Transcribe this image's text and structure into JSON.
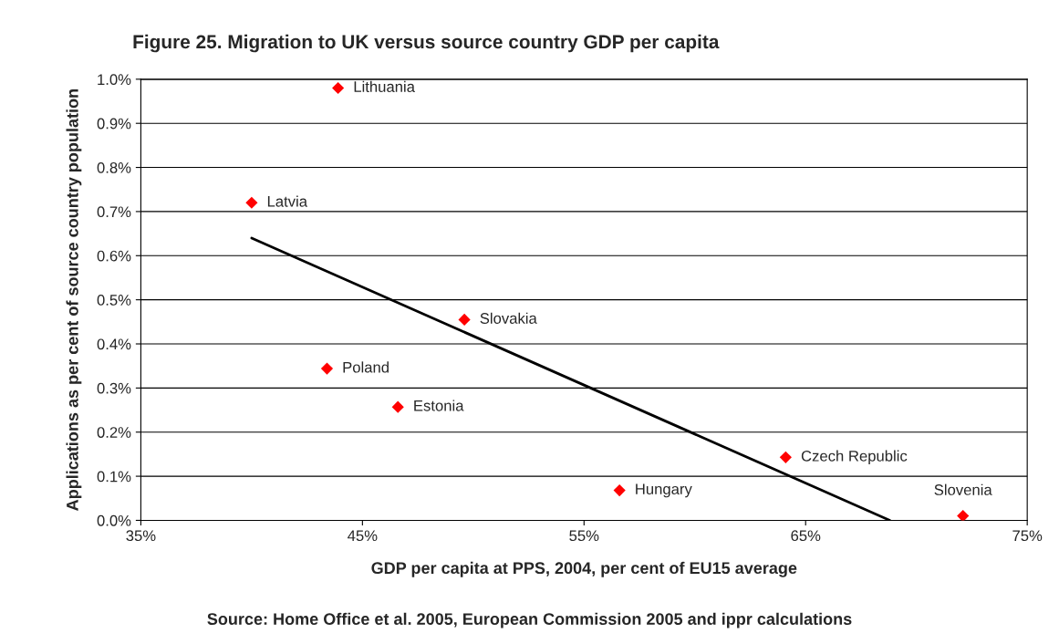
{
  "chart_data": {
    "type": "scatter",
    "title": "Figure 25. Migration to UK versus source country GDP per capita",
    "xlabel": "GDP per capita at PPS, 2004, per cent of EU15 average",
    "ylabel": "Applications as per cent of source country population",
    "series": [
      {
        "color": "#ff0000",
        "marker": "diamond",
        "x": [
          43.9,
          40.0,
          49.6,
          43.4,
          46.6,
          64.1,
          56.6,
          72.1
        ],
        "values": [
          0.98,
          0.72,
          0.455,
          0.344,
          0.257,
          0.143,
          0.068,
          0.01
        ]
      },
      {
        "type": "line",
        "color": "#000000",
        "line_style": "solid",
        "marker": "none",
        "x": [
          40.0,
          68.8
        ],
        "values": [
          0.64,
          0.0
        ]
      }
    ],
    "annotations": [
      {
        "text": "Lithuania",
        "x": 43.9,
        "y": 0.98
      },
      {
        "text": "Latvia",
        "x": 40.0,
        "y": 0.72
      },
      {
        "text": "Slovakia",
        "x": 49.6,
        "y": 0.455
      },
      {
        "text": "Poland",
        "x": 43.4,
        "y": 0.344
      },
      {
        "text": "Estonia",
        "x": 46.6,
        "y": 0.257
      },
      {
        "text": "Czech Republic",
        "x": 64.1,
        "y": 0.143
      },
      {
        "text": "Hungary",
        "x": 56.6,
        "y": 0.068
      },
      {
        "text": "Slovenia",
        "x": 72.1,
        "y": 0.01
      },
      "Source: Home Office et al. 2005, European Commission 2005 and ippr calculations"
    ],
    "xlim": [
      35,
      75
    ],
    "xticks": [
      {
        "value": 35,
        "label": "35%"
      },
      {
        "value": 45,
        "label": "45%"
      },
      {
        "value": 55,
        "label": "55%"
      },
      {
        "value": 65,
        "label": "65%"
      },
      {
        "value": 75,
        "label": "75%"
      }
    ],
    "ylim": [
      0,
      1.0
    ],
    "yticks": [
      {
        "value": 0,
        "label": "0.0%"
      },
      {
        "value": 0.1,
        "label": "0.1%"
      },
      {
        "value": 0.2,
        "label": "0.2%"
      },
      {
        "value": 0.3,
        "label": "0.3%"
      },
      {
        "value": 0.4,
        "label": "0.4%"
      },
      {
        "value": 0.5,
        "label": "0.5%"
      },
      {
        "value": 0.6,
        "label": "0.6%"
      },
      {
        "value": 0.7,
        "label": "0.7%"
      },
      {
        "value": 0.8,
        "label": "0.8%"
      },
      {
        "value": 0.9,
        "label": "0.9%"
      },
      {
        "value": 1.0,
        "label": "1.0%"
      }
    ],
    "grid": "y",
    "legend": false
  }
}
